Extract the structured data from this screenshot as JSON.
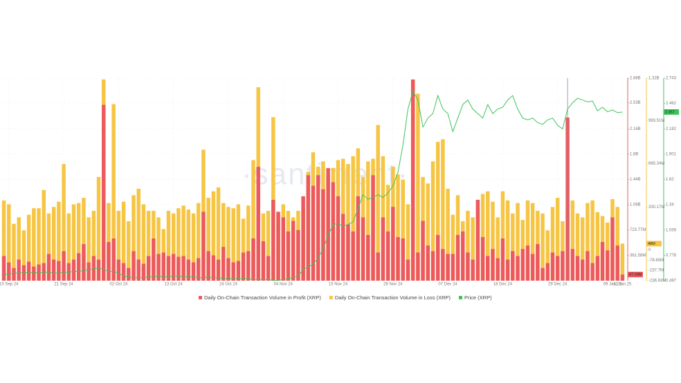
{
  "chart_data": {
    "type": "bar-line",
    "watermark": "·santiment·",
    "grid": true,
    "categories": [
      null,
      "10 Sep 24",
      null,
      null,
      null,
      null,
      null,
      null,
      null,
      null,
      null,
      null,
      "21 Sep 24",
      null,
      null,
      null,
      null,
      null,
      null,
      null,
      null,
      null,
      null,
      "02 Oct 24",
      null,
      null,
      null,
      null,
      null,
      null,
      null,
      null,
      null,
      null,
      "13 Oct 24",
      null,
      null,
      null,
      null,
      null,
      null,
      null,
      null,
      null,
      null,
      "24 Oct 24",
      null,
      null,
      null,
      null,
      null,
      null,
      null,
      null,
      null,
      null,
      "04 Nov 24",
      null,
      null,
      null,
      null,
      null,
      null,
      null,
      null,
      null,
      null,
      "15 Nov 24",
      null,
      null,
      null,
      null,
      null,
      null,
      null,
      null,
      null,
      null,
      "26 Nov 24",
      null,
      null,
      null,
      null,
      null,
      null,
      null,
      null,
      null,
      null,
      "07 Dec 24",
      null,
      null,
      null,
      null,
      null,
      null,
      null,
      null,
      null,
      null,
      "18 Dec 24",
      null,
      null,
      null,
      null,
      null,
      null,
      null,
      null,
      null,
      null,
      "29 Dec 24",
      null,
      null,
      null,
      null,
      null,
      null,
      null,
      null,
      null,
      null,
      "09 Jan 25",
      null,
      "11 Jan 25"
    ],
    "ylim": [
      0,
      2880000000
    ],
    "yticks": [
      {
        "value": 361580000,
        "label": "361.58M"
      },
      {
        "value": 723770000,
        "label": "723.77M"
      },
      {
        "value": 1080000000,
        "label": "1.08B"
      },
      {
        "value": 1440000000,
        "label": "1.44B"
      },
      {
        "value": 1800000000,
        "label": "1.8B"
      },
      {
        "value": 2160000000,
        "label": "2.16B"
      },
      {
        "value": 2530000000,
        "label": "2.53B"
      },
      {
        "value": 2880000000,
        "label": "2.88B"
      }
    ],
    "y2lim": [
      -236930000,
      1320000000
    ],
    "y2ticks": [
      {
        "value": -236930000,
        "label": "-236.93M"
      },
      {
        "value": -157700000,
        "label": "-157.7M"
      },
      {
        "value": -78650000,
        "label": "-78.65M"
      },
      0,
      {
        "value": 330170000,
        "label": "330.17M"
      },
      {
        "value": 665340000,
        "label": "665.34M"
      },
      {
        "value": 993510000,
        "label": "993.51M"
      },
      {
        "value": 1320000000,
        "label": "1.32B"
      }
    ],
    "y3lim": [
      0.497,
      2.743
    ],
    "y3ticks": [
      0.497,
      0.778,
      1.059,
      1.34,
      1.62,
      1.901,
      2.182,
      2.462,
      2.743
    ],
    "series": [
      {
        "name": "Daily On-Chain Transaction Volume in Profit (XRP)",
        "color": "#ec5a5d",
        "axis": "y",
        "last_label": "87.03M",
        "values": [
          350000000,
          260000000,
          180000000,
          300000000,
          220000000,
          270000000,
          200000000,
          230000000,
          250000000,
          380000000,
          300000000,
          280000000,
          420000000,
          250000000,
          300000000,
          390000000,
          520000000,
          260000000,
          350000000,
          300000000,
          2500000000,
          550000000,
          600000000,
          300000000,
          250000000,
          180000000,
          420000000,
          300000000,
          240000000,
          350000000,
          600000000,
          380000000,
          400000000,
          350000000,
          380000000,
          340000000,
          350000000,
          300000000,
          260000000,
          320000000,
          980000000,
          420000000,
          360000000,
          300000000,
          480000000,
          320000000,
          260000000,
          280000000,
          400000000,
          420000000,
          600000000,
          1620000000,
          560000000,
          350000000,
          1150000000,
          980000000,
          900000000,
          700000000,
          850000000,
          720000000,
          1200000000,
          1500000000,
          1350000000,
          1500000000,
          1300000000,
          1600000000,
          1400000000,
          1200000000,
          950000000,
          800000000,
          700000000,
          1200000000,
          900000000,
          650000000,
          1500000000,
          400000000,
          900000000,
          700000000,
          1050000000,
          620000000,
          600000000,
          300000000,
          2860000000,
          400000000,
          850000000,
          500000000,
          420000000,
          650000000,
          450000000,
          380000000,
          380000000,
          650000000,
          700000000,
          400000000,
          300000000,
          1150000000,
          620000000,
          350000000,
          450000000,
          320000000,
          600000000,
          300000000,
          420000000,
          350000000,
          450000000,
          500000000,
          380000000,
          520000000,
          180000000,
          250000000,
          400000000,
          350000000,
          420000000,
          2320000000,
          450000000,
          350000000,
          300000000,
          420000000,
          250000000,
          350000000,
          550000000,
          430000000,
          900000000,
          500000000,
          87030000
        ]
      },
      {
        "name": "Daily On-Chain Transaction Volume in Loss (XRP)",
        "color": "#f6c544",
        "axis": "y2",
        "last_label": "48M",
        "values": [
          380000000,
          350000000,
          200000000,
          250000000,
          150000000,
          270000000,
          320000000,
          320000000,
          460000000,
          280000000,
          330000000,
          370000000,
          660000000,
          280000000,
          350000000,
          360000000,
          400000000,
          250000000,
          300000000,
          560000000,
          1310000000,
          360000000,
          1120000000,
          300000000,
          370000000,
          220000000,
          420000000,
          470000000,
          350000000,
          300000000,
          300000000,
          250000000,
          160000000,
          300000000,
          280000000,
          320000000,
          340000000,
          310000000,
          280000000,
          360000000,
          770000000,
          400000000,
          450000000,
          480000000,
          360000000,
          330000000,
          320000000,
          350000000,
          240000000,
          340000000,
          690000000,
          1250000000,
          280000000,
          300000000,
          1020000000,
          270000000,
          350000000,
          300000000,
          250000000,
          300000000,
          330000000,
          600000000,
          750000000,
          640000000,
          680000000,
          570000000,
          630000000,
          690000000,
          700000000,
          660000000,
          720000000,
          780000000,
          560000000,
          680000000,
          700000000,
          960000000,
          720000000,
          500000000,
          640000000,
          580000000,
          540000000,
          350000000,
          1310000000,
          1200000000,
          560000000,
          510000000,
          680000000,
          830000000,
          850000000,
          470000000,
          270000000,
          420000000,
          220000000,
          300000000,
          250000000,
          320000000,
          430000000,
          450000000,
          370000000,
          250000000,
          450000000,
          380000000,
          280000000,
          360000000,
          230000000,
          380000000,
          360000000,
          300000000,
          280000000,
          150000000,
          330000000,
          400000000,
          220000000,
          300000000,
          380000000,
          280000000,
          250000000,
          360000000,
          380000000,
          290000000,
          260000000,
          210000000,
          390000000,
          330000000,
          48000000
        ]
      },
      {
        "name": "Price (XRP)",
        "color": "#3cc35a",
        "axis": "y3",
        "last_label": "2.367",
        "values": [
          0.57,
          0.57,
          0.58,
          0.58,
          0.59,
          0.58,
          0.59,
          0.58,
          0.59,
          0.59,
          0.58,
          0.58,
          0.59,
          0.59,
          0.6,
          0.6,
          0.61,
          0.62,
          0.63,
          0.64,
          0.62,
          0.6,
          0.6,
          0.58,
          0.55,
          0.54,
          0.53,
          0.53,
          0.53,
          0.54,
          0.54,
          0.55,
          0.54,
          0.54,
          0.55,
          0.55,
          0.54,
          0.54,
          0.54,
          0.53,
          0.53,
          0.54,
          0.53,
          0.53,
          0.52,
          0.52,
          0.52,
          0.52,
          0.52,
          0.52,
          0.51,
          0.51,
          0.51,
          0.51,
          0.5,
          0.5,
          0.51,
          0.52,
          0.53,
          0.55,
          0.62,
          0.65,
          0.68,
          0.75,
          0.85,
          1.0,
          1.12,
          1.13,
          1.1,
          1.12,
          1.15,
          1.3,
          1.45,
          1.4,
          1.42,
          1.45,
          1.42,
          1.47,
          1.55,
          1.7,
          2.0,
          2.4,
          2.6,
          2.5,
          2.2,
          2.3,
          2.35,
          2.55,
          2.4,
          2.35,
          2.15,
          2.3,
          2.45,
          2.5,
          2.4,
          2.35,
          2.3,
          2.45,
          2.35,
          2.4,
          2.42,
          2.5,
          2.55,
          2.4,
          2.3,
          2.28,
          2.3,
          2.25,
          2.23,
          2.28,
          2.3,
          2.22,
          2.18,
          2.4,
          2.47,
          2.52,
          2.5,
          2.48,
          2.49,
          2.38,
          2.42,
          2.37,
          2.39,
          2.36,
          2.367
        ]
      }
    ]
  }
}
